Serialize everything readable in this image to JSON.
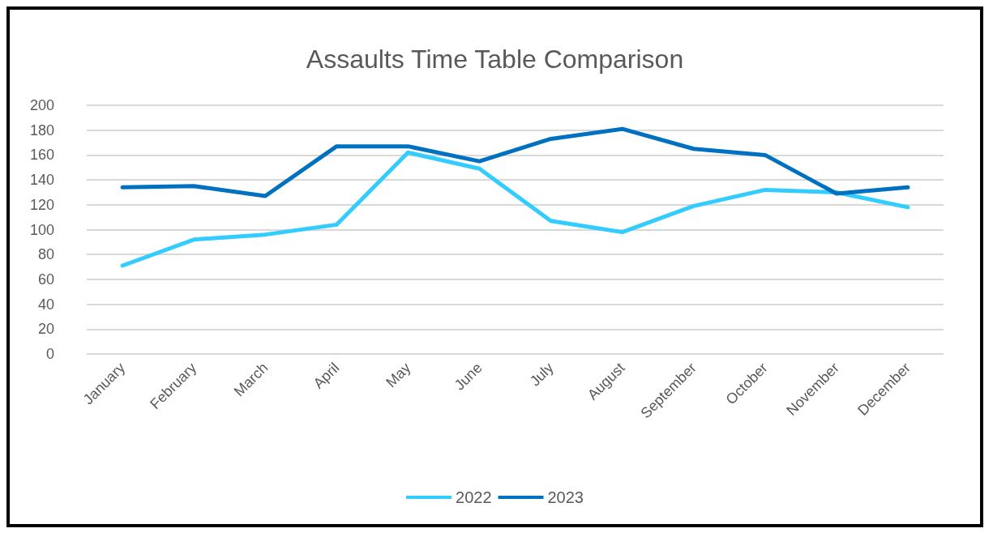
{
  "chart_data": {
    "type": "line",
    "title": "Assaults Time Table Comparison",
    "categories": [
      "January",
      "February",
      "March",
      "April",
      "May",
      "June",
      "July",
      "August",
      "September",
      "October",
      "November",
      "December"
    ],
    "series": [
      {
        "name": "2022",
        "color": "#33ccff",
        "values": [
          71,
          92,
          96,
          104,
          162,
          149,
          107,
          98,
          119,
          132,
          130,
          118
        ]
      },
      {
        "name": "2023",
        "color": "#0070c0",
        "values": [
          134,
          135,
          127,
          167,
          167,
          155,
          173,
          181,
          165,
          160,
          129,
          134
        ]
      }
    ],
    "ylim": [
      0,
      200
    ],
    "yticks": [
      0,
      20,
      40,
      60,
      80,
      100,
      120,
      140,
      160,
      180,
      200
    ],
    "grid": "y",
    "legend": "bottom",
    "marker": "none",
    "line_style": "solid"
  }
}
